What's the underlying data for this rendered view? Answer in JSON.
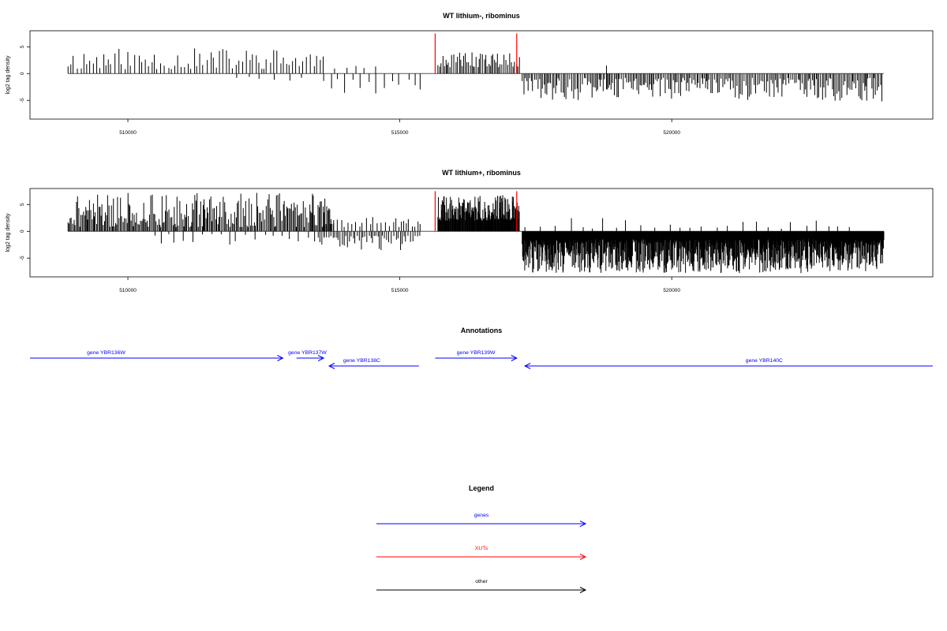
{
  "chart_data": [
    {
      "type": "bar",
      "title": "WT lithium-, ribominus",
      "ylabel": "log2 tag density",
      "xlim": [
        508200,
        524800
      ],
      "ylim": [
        -8.5,
        8
      ],
      "xticks": [
        510000,
        515000,
        520000
      ],
      "xtick_labels": [
        "510000",
        "515000",
        "520000"
      ],
      "yticks": [
        -5,
        0,
        5
      ],
      "ytick_labels": [
        "-5",
        "0",
        "5"
      ],
      "baseline": {
        "from": 508900,
        "to": 523900,
        "value": 0
      },
      "markers": [
        {
          "x": 515650,
          "height": 7.5,
          "color": "#ff0000"
        },
        {
          "x": 517150,
          "height": 7.5,
          "color": "#ff0000"
        }
      ],
      "segments": [
        {
          "from": 508900,
          "to": 513600,
          "sign": 1,
          "min": 0.8,
          "max": 4.8,
          "step": 62,
          "seed": 11
        },
        {
          "from": 512000,
          "to": 513200,
          "sign": -1,
          "min": 0.6,
          "max": 2.0,
          "step": 260,
          "seed": 12
        },
        {
          "from": 513600,
          "to": 515400,
          "sign": -1,
          "min": 1.0,
          "max": 3.8,
          "step": 150,
          "seed": 13
        },
        {
          "from": 513800,
          "to": 514600,
          "sign": 1,
          "min": 0.8,
          "max": 1.8,
          "step": 220,
          "seed": 14
        },
        {
          "from": 515700,
          "to": 517200,
          "sign": 1,
          "min": 1.2,
          "max": 4.0,
          "step": 30,
          "seed": 15
        },
        {
          "from": 517250,
          "to": 523900,
          "sign": -1,
          "min": 0.8,
          "max": 5.2,
          "step": 28,
          "seed": 16
        },
        {
          "from": 518800,
          "to": 518900,
          "sign": 1,
          "min": 1.5,
          "max": 1.6,
          "step": 80,
          "seed": 17
        }
      ]
    },
    {
      "type": "bar",
      "title": "WT lithium+, ribominus",
      "ylabel": "log2 tag density",
      "xlim": [
        508200,
        524800
      ],
      "ylim": [
        -8.5,
        8
      ],
      "xticks": [
        510000,
        515000,
        520000
      ],
      "xtick_labels": [
        "510000",
        "515000",
        "520000"
      ],
      "yticks": [
        -5,
        0,
        5
      ],
      "ytick_labels": [
        "-5",
        "0",
        "5"
      ],
      "baseline": {
        "from": 508900,
        "to": 523900,
        "value": 0
      },
      "markers": [
        {
          "x": 515650,
          "height": 7.5,
          "color": "#ff0000"
        },
        {
          "x": 517150,
          "height": 7.5,
          "color": "#ff0000"
        }
      ],
      "segments": [
        {
          "from": 508900,
          "to": 513800,
          "sign": 1,
          "min": 0.8,
          "max": 7.2,
          "step": 22,
          "seed": 21
        },
        {
          "from": 510500,
          "to": 513700,
          "sign": -1,
          "min": 0.5,
          "max": 2.6,
          "step": 140,
          "seed": 22
        },
        {
          "from": 513500,
          "to": 515400,
          "sign": -1,
          "min": 0.8,
          "max": 3.5,
          "step": 35,
          "seed": 23
        },
        {
          "from": 513600,
          "to": 515400,
          "sign": 1,
          "min": 0.8,
          "max": 3.0,
          "step": 60,
          "seed": 24
        },
        {
          "from": 515700,
          "to": 517200,
          "sign": 1,
          "min": 2.0,
          "max": 6.8,
          "step": 9,
          "seed": 25
        },
        {
          "from": 517250,
          "to": 523900,
          "sign": -1,
          "min": 1.5,
          "max": 7.8,
          "step": 7,
          "seed": 26
        },
        {
          "from": 517300,
          "to": 523500,
          "sign": 1,
          "min": 0.5,
          "max": 2.5,
          "step": 240,
          "seed": 27
        }
      ]
    }
  ],
  "annotations": {
    "title": "Annotations",
    "genes": [
      {
        "label": "gene YBR136W",
        "from": 508200,
        "to": 512850,
        "direction": "forward",
        "row": 0,
        "label_x": 509600
      },
      {
        "label": "gene YBR137W",
        "from": 513100,
        "to": 513600,
        "direction": "forward",
        "row": 0,
        "label_x": 513300
      },
      {
        "label": "gene YBR138C",
        "from": 513700,
        "to": 515350,
        "direction": "reverse",
        "row": 1,
        "label_x": 514300
      },
      {
        "label": "gene YBR139W",
        "from": 515650,
        "to": 517150,
        "direction": "forward",
        "row": 0,
        "label_x": 516400
      },
      {
        "label": "gene YBR140C",
        "from": 517300,
        "to": 524800,
        "direction": "reverse",
        "row": 1,
        "label_x": 521700
      }
    ],
    "color": "#0000ff"
  },
  "legend": {
    "title": "Legend",
    "items": [
      {
        "label": "genes",
        "color": "#0000ff"
      },
      {
        "label": "XUTs",
        "color": "#ff0000"
      },
      {
        "label": "other",
        "color": "#000000"
      }
    ]
  }
}
